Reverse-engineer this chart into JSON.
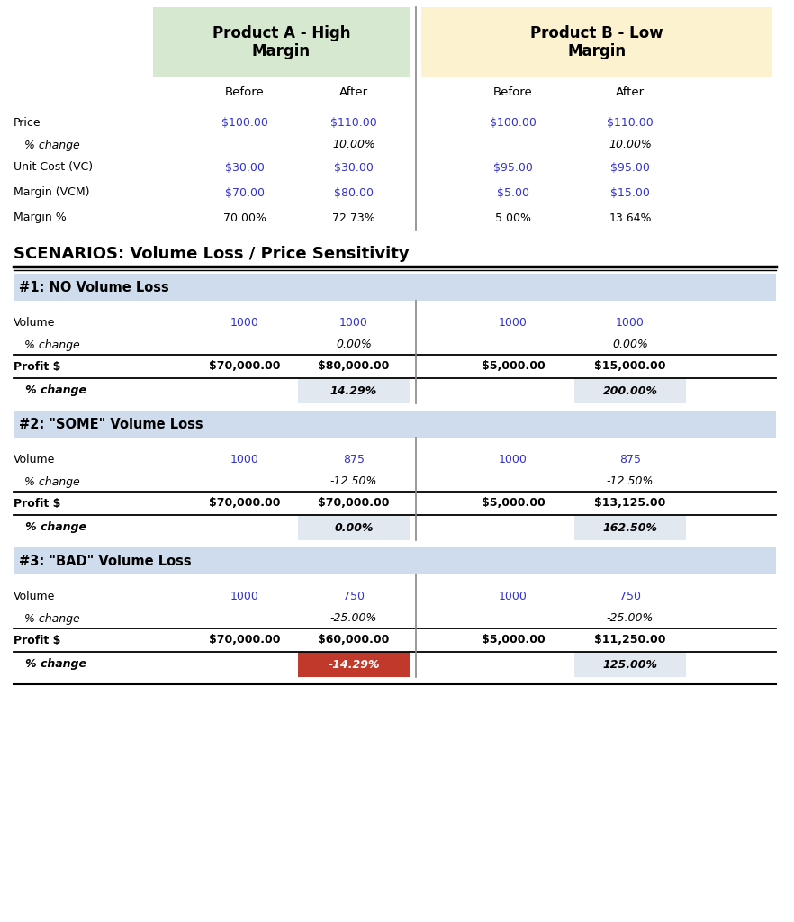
{
  "fig_width": 8.82,
  "fig_height": 10.24,
  "dpi": 100,
  "bg_color": "#ffffff",
  "header_a_color": "#d6e8d0",
  "header_b_color": "#fdf2d0",
  "scenario_header_color": "#cfdced",
  "pct_highlight_color": "#e2e8f0",
  "red_bg_color": "#c0392b",
  "blue_color": "#3333cc",
  "black_color": "#111111",
  "gray_color": "#444444",
  "product_a_label": "Product A - High\nMargin",
  "product_b_label": "Product B - Low\nMargin",
  "scenarios_title": "SCENARIOS: Volume Loss / Price Sensitivity",
  "top_rows": [
    {
      "label": "Price",
      "italic": false,
      "bold": false,
      "vals": [
        "$100.00",
        "$110.00",
        "$100.00",
        "$110.00"
      ],
      "blue": [
        true,
        true,
        true,
        true
      ]
    },
    {
      "label": "   % change",
      "italic": true,
      "bold": false,
      "vals": [
        "",
        "10.00%",
        "",
        "10.00%"
      ],
      "blue": [
        false,
        false,
        false,
        false
      ]
    },
    {
      "label": "Unit Cost (VC)",
      "italic": false,
      "bold": false,
      "vals": [
        "$30.00",
        "$30.00",
        "$95.00",
        "$95.00"
      ],
      "blue": [
        true,
        true,
        true,
        true
      ]
    },
    {
      "label": "Margin (VCM)",
      "italic": false,
      "bold": false,
      "vals": [
        "$70.00",
        "$80.00",
        "$5.00",
        "$15.00"
      ],
      "blue": [
        true,
        true,
        true,
        true
      ]
    },
    {
      "label": "Margin %",
      "italic": false,
      "bold": false,
      "vals": [
        "70.00%",
        "72.73%",
        "5.00%",
        "13.64%"
      ],
      "blue": [
        false,
        false,
        false,
        false
      ]
    }
  ],
  "scenarios": [
    {
      "title": "#1: NO Volume Loss",
      "rows": [
        {
          "label": "Volume",
          "italic": false,
          "bold": false,
          "highlight": false,
          "red_a": false,
          "vals": [
            "1000",
            "1000",
            "1000",
            "1000"
          ],
          "blue": [
            true,
            true,
            true,
            true
          ]
        },
        {
          "label": "   % change",
          "italic": true,
          "bold": false,
          "highlight": false,
          "red_a": false,
          "vals": [
            "",
            "0.00%",
            "",
            "0.00%"
          ],
          "blue": [
            false,
            false,
            false,
            false
          ]
        },
        {
          "label": "Profit $",
          "italic": false,
          "bold": true,
          "highlight": false,
          "red_a": false,
          "vals": [
            "$70,000.00",
            "$80,000.00",
            "$5,000.00",
            "$15,000.00"
          ],
          "blue": [
            false,
            false,
            false,
            false
          ]
        },
        {
          "label": "   % change",
          "italic": true,
          "bold": true,
          "highlight": true,
          "red_a": false,
          "vals": [
            "",
            "14.29%",
            "",
            "200.00%"
          ],
          "blue": [
            false,
            false,
            false,
            false
          ]
        }
      ]
    },
    {
      "title": "#2: \"SOME\" Volume Loss",
      "rows": [
        {
          "label": "Volume",
          "italic": false,
          "bold": false,
          "highlight": false,
          "red_a": false,
          "vals": [
            "1000",
            "875",
            "1000",
            "875"
          ],
          "blue": [
            true,
            true,
            true,
            true
          ]
        },
        {
          "label": "   % change",
          "italic": true,
          "bold": false,
          "highlight": false,
          "red_a": false,
          "vals": [
            "",
            "-12.50%",
            "",
            "-12.50%"
          ],
          "blue": [
            false,
            false,
            false,
            false
          ]
        },
        {
          "label": "Profit $",
          "italic": false,
          "bold": true,
          "highlight": false,
          "red_a": false,
          "vals": [
            "$70,000.00",
            "$70,000.00",
            "$5,000.00",
            "$13,125.00"
          ],
          "blue": [
            false,
            false,
            false,
            false
          ]
        },
        {
          "label": "   % change",
          "italic": true,
          "bold": true,
          "highlight": true,
          "red_a": false,
          "vals": [
            "",
            "0.00%",
            "",
            "162.50%"
          ],
          "blue": [
            false,
            false,
            false,
            false
          ]
        }
      ]
    },
    {
      "title": "#3: \"BAD\" Volume Loss",
      "rows": [
        {
          "label": "Volume",
          "italic": false,
          "bold": false,
          "highlight": false,
          "red_a": false,
          "vals": [
            "1000",
            "750",
            "1000",
            "750"
          ],
          "blue": [
            true,
            true,
            true,
            true
          ]
        },
        {
          "label": "   % change",
          "italic": true,
          "bold": false,
          "highlight": false,
          "red_a": false,
          "vals": [
            "",
            "-25.00%",
            "",
            "-25.00%"
          ],
          "blue": [
            false,
            false,
            false,
            false
          ]
        },
        {
          "label": "Profit $",
          "italic": false,
          "bold": true,
          "highlight": false,
          "red_a": false,
          "vals": [
            "$70,000.00",
            "$60,000.00",
            "$5,000.00",
            "$11,250.00"
          ],
          "blue": [
            false,
            false,
            false,
            false
          ]
        },
        {
          "label": "   % change",
          "italic": true,
          "bold": true,
          "highlight": true,
          "red_a": true,
          "vals": [
            "",
            "-14.29%",
            "",
            "125.00%"
          ],
          "blue": [
            false,
            false,
            false,
            false
          ]
        }
      ]
    }
  ]
}
